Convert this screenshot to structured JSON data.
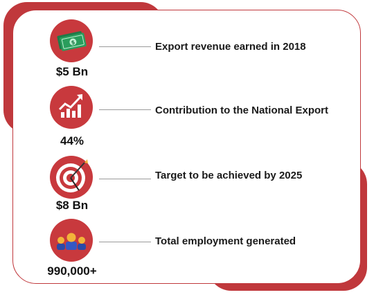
{
  "items": [
    {
      "icon": "money-icon",
      "stat": "$5 Bn",
      "label": "Export revenue earned in 2018"
    },
    {
      "icon": "growth-chart-icon",
      "stat": "44%",
      "label": "Contribution to the National Export"
    },
    {
      "icon": "target-icon",
      "stat": "$8 Bn",
      "label": "Target to be achieved by 2025"
    },
    {
      "icon": "people-icon",
      "stat": "990,000+",
      "label": "Total employment generated"
    }
  ],
  "colors": {
    "accent": "#c0383c",
    "money": "#2a9d5c",
    "people_gold": "#f2b43a",
    "people_blue": "#2b4aa8"
  }
}
